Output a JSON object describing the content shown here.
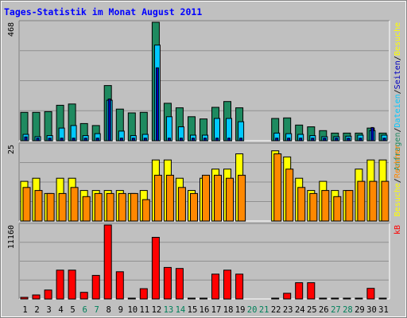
{
  "chart_data": {
    "type": "bar",
    "title": "Tages-Statistik im Monat August 2011",
    "categories": [
      "1",
      "2",
      "3",
      "4",
      "5",
      "6",
      "7",
      "8",
      "9",
      "10",
      "11",
      "12",
      "13",
      "14",
      "15",
      "16",
      "17",
      "18",
      "19",
      "20",
      "21",
      "22",
      "23",
      "24",
      "25",
      "26",
      "27",
      "28",
      "29",
      "30",
      "31"
    ],
    "weekend_days": [
      "6",
      "7",
      "13",
      "14",
      "20",
      "21",
      "27",
      "28"
    ],
    "panels": [
      {
        "id": "requests",
        "scale_label": "468",
        "ymax": 468,
        "right_label_parts": [
          "Anfragen",
          "/",
          "Dateien",
          "/",
          "Seiten",
          "/",
          "Besuche"
        ],
        "series": [
          {
            "name": "Anfragen",
            "color": "#1e8a60",
            "values": [
              112,
              112,
              115,
              140,
              145,
              68,
              60,
              218,
              125,
              110,
              112,
              468,
              148,
              130,
              95,
              86,
              132,
              155,
              130,
              0,
              0,
              88,
              90,
              62,
              55,
              40,
              30,
              30,
              30,
              50,
              30
            ]
          },
          {
            "name": "Dateien",
            "color": "#00c8ff",
            "values": [
              25,
              16,
              20,
              50,
              60,
              20,
              28,
              160,
              38,
              20,
              25,
              378,
              95,
              55,
              22,
              22,
              88,
              88,
              75,
              0,
              0,
              30,
              28,
              25,
              20,
              16,
              16,
              18,
              22,
              40,
              22
            ]
          },
          {
            "name": "Seiten",
            "color": "#0000c0",
            "values": [
              15,
              10,
              10,
              10,
              10,
              10,
              10,
              165,
              10,
              10,
              10,
              288,
              10,
              10,
              10,
              10,
              10,
              10,
              10,
              0,
              0,
              10,
              10,
              10,
              10,
              10,
              10,
              10,
              10,
              52,
              10
            ]
          }
        ]
      },
      {
        "id": "visits",
        "scale_label": "25",
        "ymax": 25,
        "right_label_parts": [
          "Besuche",
          "/",
          "Rechner"
        ],
        "series": [
          {
            "name": "Besuche",
            "color": "#ffff00",
            "values": [
              13,
              14,
              9,
              14,
              14,
              10,
              10,
              10,
              10,
              9,
              10,
              20,
              20,
              14,
              10,
              14,
              17,
              17,
              22,
              0,
              0,
              23,
              21,
              14,
              10,
              13,
              10,
              10,
              17,
              20,
              20
            ]
          },
          {
            "name": "Rechner",
            "color": "#ff8800",
            "values": [
              11,
              10,
              9,
              9,
              11,
              8,
              9,
              9,
              9,
              9,
              7,
              15,
              15,
              11,
              9,
              15,
              15,
              14,
              15,
              0,
              0,
              22,
              17,
              11,
              9,
              10,
              8,
              10,
              13,
              13,
              13
            ]
          }
        ]
      },
      {
        "id": "kb",
        "scale_label": "11160",
        "ymax": 11160,
        "right_label_parts": [
          "kB"
        ],
        "series": [
          {
            "name": "kB",
            "color": "#ff0000",
            "values": [
              240,
              600,
              1350,
              4350,
              4350,
              1000,
              3550,
              11160,
              4100,
              50,
              1550,
              9300,
              4750,
              4600,
              50,
              50,
              3750,
              4350,
              3750,
              0,
              0,
              100,
              850,
              2450,
              2450,
              50,
              50,
              50,
              50,
              1600,
              120
            ]
          }
        ]
      }
    ]
  }
}
